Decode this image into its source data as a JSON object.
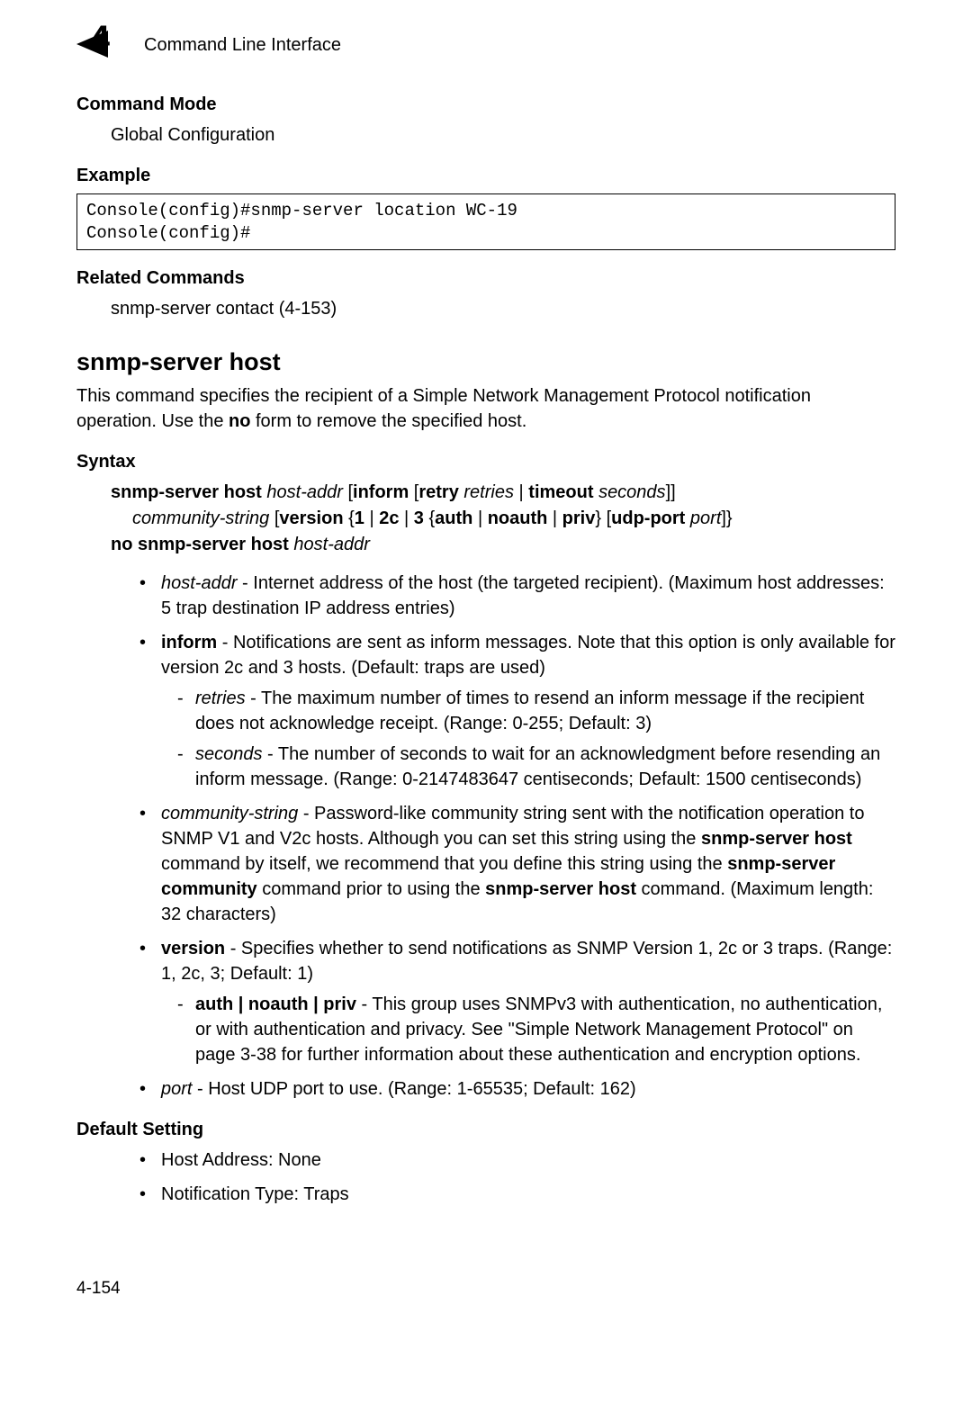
{
  "header": {
    "chapter_number": "4",
    "title": "Command Line Interface"
  },
  "sections": {
    "command_mode": {
      "label": "Command Mode",
      "text": "Global Configuration"
    },
    "example": {
      "label": "Example",
      "code": "Console(config)#snmp-server location WC-19\nConsole(config)#"
    },
    "related": {
      "label": "Related Commands",
      "text": "snmp-server contact (4-153)"
    },
    "command": {
      "title": "snmp-server host",
      "desc_pre": "This command specifies the recipient of a Simple Network Management Protocol notification operation. Use the ",
      "desc_bold": "no",
      "desc_post": " form to remove the specified host."
    },
    "syntax": {
      "label": "Syntax",
      "l1_b1": "snmp-server host ",
      "l1_i1": "host-addr",
      "l1_t1": " [",
      "l1_b2": "inform",
      "l1_t2": " [",
      "l1_b3": "retry ",
      "l1_i2": "retries",
      "l1_t3": " | ",
      "l1_b4": "timeout ",
      "l1_i3": "seconds",
      "l1_t4": "]]",
      "l2_i1": "community-string",
      "l2_t1": " [",
      "l2_b1": "version",
      "l2_t2": " {",
      "l2_b2": "1",
      "l2_t3": " | ",
      "l2_b3": "2c",
      "l2_t4": " | ",
      "l2_b4": "3",
      "l2_t5": " {",
      "l2_b5": "auth",
      "l2_t6": " | ",
      "l2_b6": "noauth",
      "l2_t7": " | ",
      "l2_b7": "priv",
      "l2_t8": "} [",
      "l2_b8": "udp-port ",
      "l2_i2": "port",
      "l2_t9": "]}",
      "l3_b1": "no snmp-server host ",
      "l3_i1": "host-addr"
    },
    "params": {
      "hostaddr_i": "host-addr",
      "hostaddr_t": " - Internet address of the host (the targeted recipient). (Maximum host addresses: 5 trap destination IP address entries)",
      "inform_b": "inform",
      "inform_t": " - Notifications are sent as inform messages. Note that this option is only available for version 2c and 3 hosts. (Default: traps are used)",
      "retries_i": "retries",
      "retries_t": " - The maximum number of times to resend an inform message if the recipient does not acknowledge receipt. (Range: 0-255; Default: 3)",
      "seconds_i": "seconds",
      "seconds_t": " - The number of seconds to wait for an acknowledgment before resending an inform message. (Range: 0-2147483647 centiseconds; Default: 1500 centiseconds)",
      "comm_i": "community-string",
      "comm_t1": " - Password-like community string sent with the notification operation to SNMP V1 and V2c hosts. Although you can set this string using the ",
      "comm_b1": "snmp-server host",
      "comm_t2": " command by itself, we recommend that you define this string using the ",
      "comm_b2": "snmp-server community",
      "comm_t3": " command prior to using the ",
      "comm_b3": "snmp-server host",
      "comm_t4": " command. (Maximum length: 32 characters)",
      "version_b": "version",
      "version_t": " - Specifies whether to send notifications as SNMP Version 1, 2c or 3 traps. (Range: 1, 2c, 3; Default: 1)",
      "auth_b": "auth | noauth | priv",
      "auth_t": " - This group uses SNMPv3 with authentication, no authentication, or with authentication and privacy. See \"Simple Network Management Protocol\" on page 3-38 for further information about these authentication and encryption options.",
      "port_i": "port",
      "port_t": " - Host UDP port to use. (Range: 1-65535; Default: 162)"
    },
    "default": {
      "label": "Default Setting",
      "item1": "Host Address: None",
      "item2": "Notification Type: Traps"
    }
  },
  "footer": {
    "page": "4-154"
  }
}
